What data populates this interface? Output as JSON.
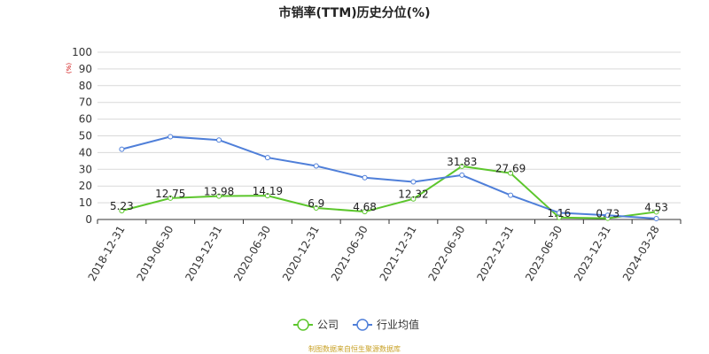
{
  "chart_data": {
    "type": "line",
    "title": "市销率(TTM)历史分位(%)",
    "ylabel": "(%)",
    "ylim": [
      0,
      100
    ],
    "yticks": [
      0,
      10,
      20,
      30,
      40,
      50,
      60,
      70,
      80,
      90,
      100
    ],
    "categories": [
      "2018-12-31",
      "2019-06-30",
      "2019-12-31",
      "2020-06-30",
      "2020-12-31",
      "2021-06-30",
      "2021-12-31",
      "2022-06-30",
      "2022-12-31",
      "2023-06-30",
      "2023-12-31",
      "2024-03-28"
    ],
    "series": [
      {
        "name": "公司",
        "color": "#5cc62c",
        "show_labels": true,
        "values": [
          5.23,
          12.75,
          13.98,
          14.19,
          6.9,
          4.68,
          12.32,
          31.83,
          27.69,
          1.16,
          0.73,
          4.53
        ]
      },
      {
        "name": "行业均值",
        "color": "#4f7fd9",
        "show_labels": false,
        "values": [
          42,
          49.5,
          47.5,
          37,
          32,
          25,
          22.5,
          26.5,
          14.5,
          4,
          2.5,
          0.5
        ]
      }
    ],
    "grid": true,
    "legend_position": "bottom-center"
  },
  "source": "制图数据来自恒生聚源数据库"
}
